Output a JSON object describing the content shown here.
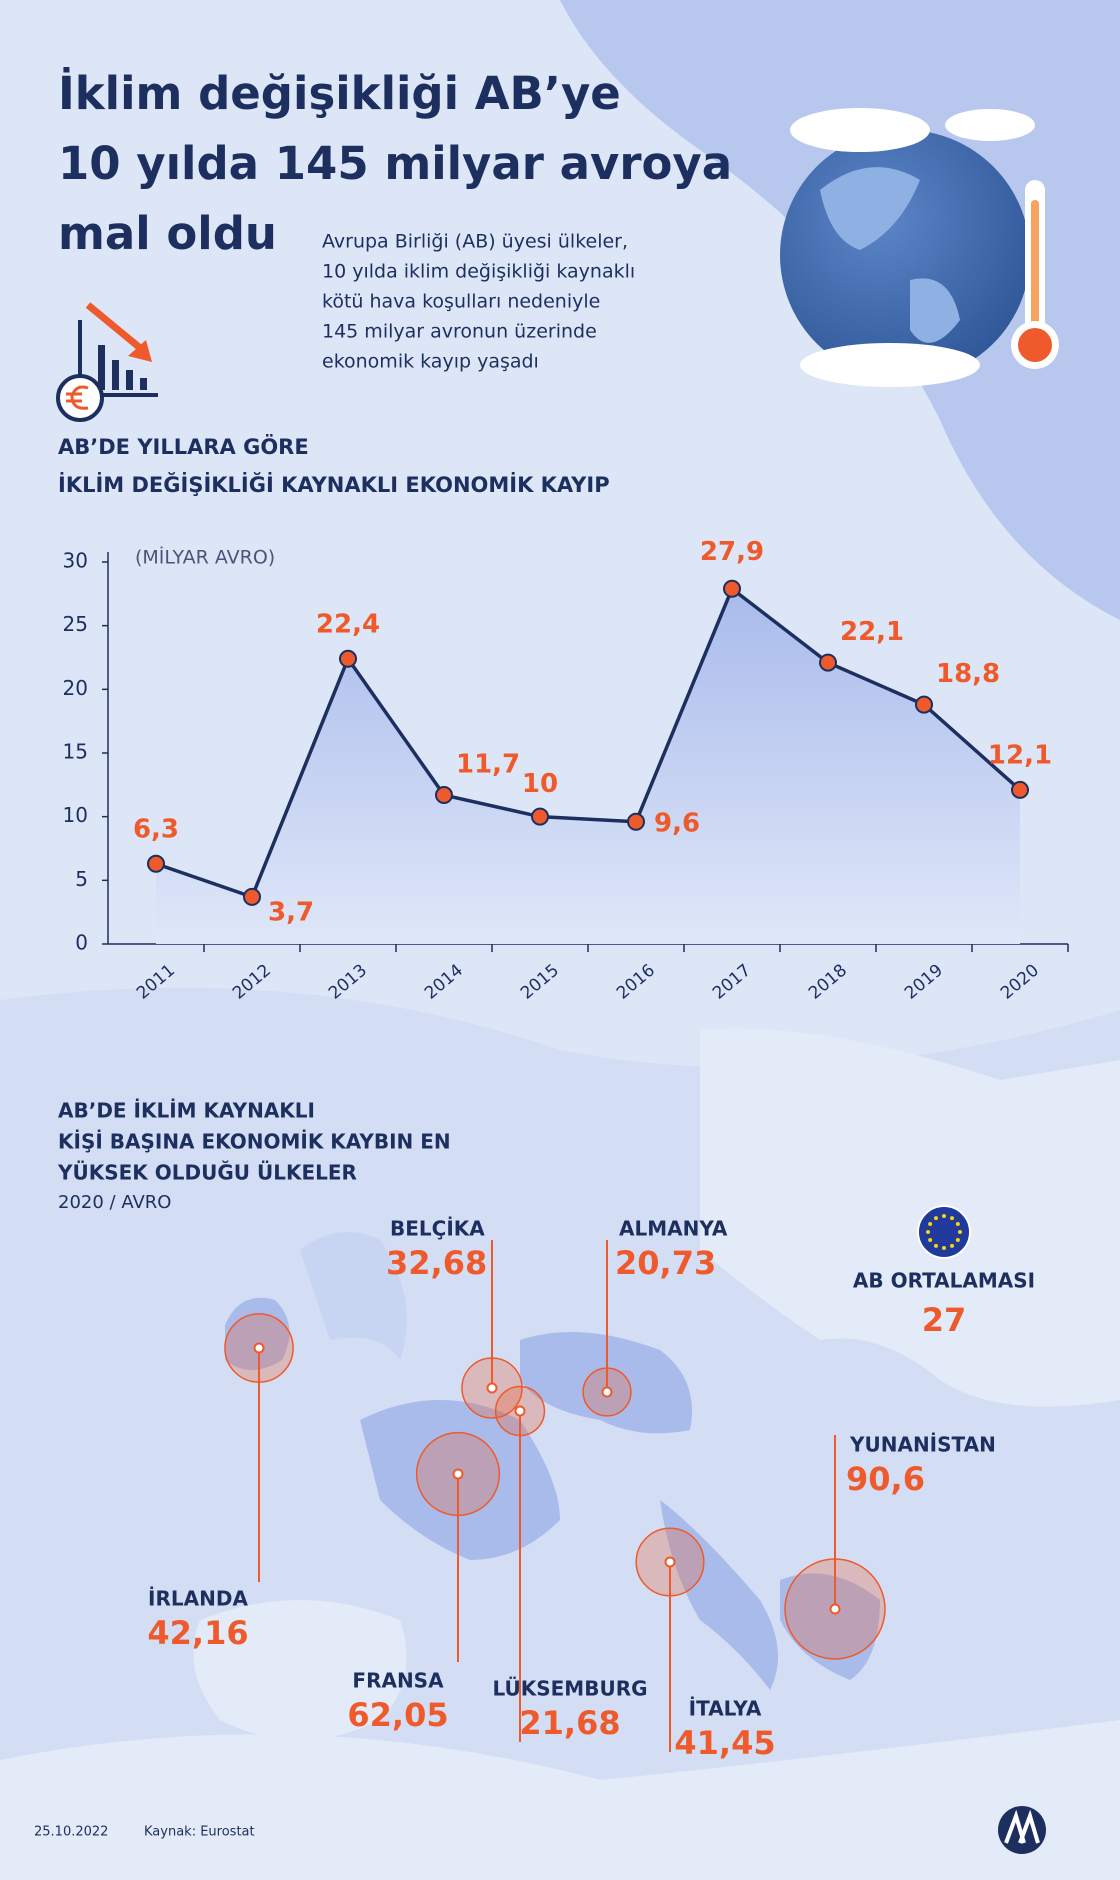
{
  "header": {
    "title_lines": [
      "İklim değişikliği AB’ye",
      "10 yılda 145 milyar avroya",
      "mal oldu"
    ],
    "subtitle_lines": [
      "Avrupa Birliği (AB) üyesi ülkeler,",
      "10 yılda iklim değişikliği kaynaklı",
      "kötü hava koşulları nedeniyle",
      "145 milyar avronun üzerinde",
      "ekonomik kayıp yaşadı"
    ]
  },
  "chart_data": {
    "type": "line",
    "title_lines": [
      "AB’DE YILLARA GÖRE",
      "İKLİM DEĞİŞİKLİĞİ KAYNAKLI EKONOMİK KAYIP"
    ],
    "unit_label": "(MİLYAR AVRO)",
    "categories": [
      "2011",
      "2012",
      "2013",
      "2014",
      "2015",
      "2016",
      "2017",
      "2018",
      "2019",
      "2020"
    ],
    "values": [
      6.3,
      3.7,
      22.4,
      11.7,
      10,
      9.6,
      27.9,
      22.1,
      18.8,
      12.1
    ],
    "value_labels": [
      "6,3",
      "3,7",
      "22,4",
      "11,7",
      "10",
      "9,6",
      "27,9",
      "22,1",
      "18,8",
      "12,1"
    ],
    "ylim": [
      0,
      30
    ],
    "yticks": [
      0,
      5,
      10,
      15,
      20,
      25,
      30
    ],
    "color": "#1d2f5f",
    "marker_color": "#ee5a2b"
  },
  "map": {
    "title_lines": [
      "AB’DE İKLİM KAYNAKLI",
      "KİŞİ BAŞINA EKONOMİK KAYBIN EN",
      "YÜKSEK OLDUĞU ÜLKELER"
    ],
    "subtitle": "2020 / AVRO",
    "countries": [
      {
        "name": "BELÇİKA",
        "value": 32.68,
        "label": "32,68"
      },
      {
        "name": "ALMANYA",
        "value": 20.73,
        "label": "20,73"
      },
      {
        "name": "YUNANİSTAN",
        "value": 90.6,
        "label": "90,6"
      },
      {
        "name": "İRLANDA",
        "value": 42.16,
        "label": "42,16"
      },
      {
        "name": "FRANSA",
        "value": 62.05,
        "label": "62,05"
      },
      {
        "name": "LÜKSEMBURG",
        "value": 21.68,
        "label": "21,68"
      },
      {
        "name": "İTALYA",
        "value": 41.45,
        "label": "41,45"
      }
    ],
    "eu_average": {
      "name": "AB ORTALAMASI",
      "value": 27
    }
  },
  "footer": {
    "date": "25.10.2022",
    "source": "Kaynak: Eurostat"
  }
}
